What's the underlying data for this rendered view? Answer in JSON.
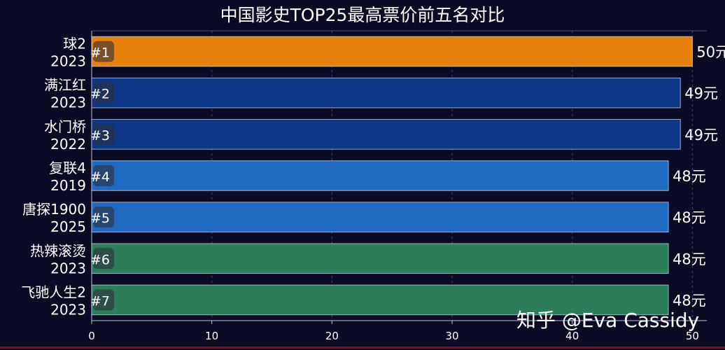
{
  "chart_data": {
    "type": "bar",
    "orientation": "horizontal",
    "title": "中国影史TOP25最高票价前五名对比",
    "categories": [
      {
        "name": "球2",
        "year": "2023",
        "rank": "#1"
      },
      {
        "name": "满江红",
        "year": "2023",
        "rank": "#2"
      },
      {
        "name": "水门桥",
        "year": "2022",
        "rank": "#3"
      },
      {
        "name": "复联4",
        "year": "2019",
        "rank": "#4"
      },
      {
        "name": "唐探1900",
        "year": "2025",
        "rank": "#5"
      },
      {
        "name": "热辣滚烫",
        "year": "2023",
        "rank": "#6"
      },
      {
        "name": "飞驰人生2",
        "year": "2023",
        "rank": "#7"
      }
    ],
    "values": [
      50,
      49,
      49,
      48,
      48,
      48,
      48
    ],
    "value_labels": [
      "50元",
      "49元",
      "49元",
      "48元",
      "48元",
      "48元",
      "48元"
    ],
    "bar_colors": [
      "#e8810c",
      "#0c3787",
      "#0c3787",
      "#1f6ac0",
      "#1f6ac0",
      "#2c7d5a",
      "#2c7d5a"
    ],
    "xlim": [
      0,
      51.2
    ],
    "xticks": [
      0,
      10,
      20,
      30,
      40,
      50
    ],
    "grid": "vertical dashed",
    "xlabel": "",
    "ylabel": ""
  },
  "watermark": "知乎 @Eva Cassidy",
  "colors": {
    "background": "#0b0b26",
    "axis": "#b8c0d8",
    "grid": "#3a4a7a",
    "text": "#ffffff",
    "rank_badge": "#2e2e3a"
  }
}
